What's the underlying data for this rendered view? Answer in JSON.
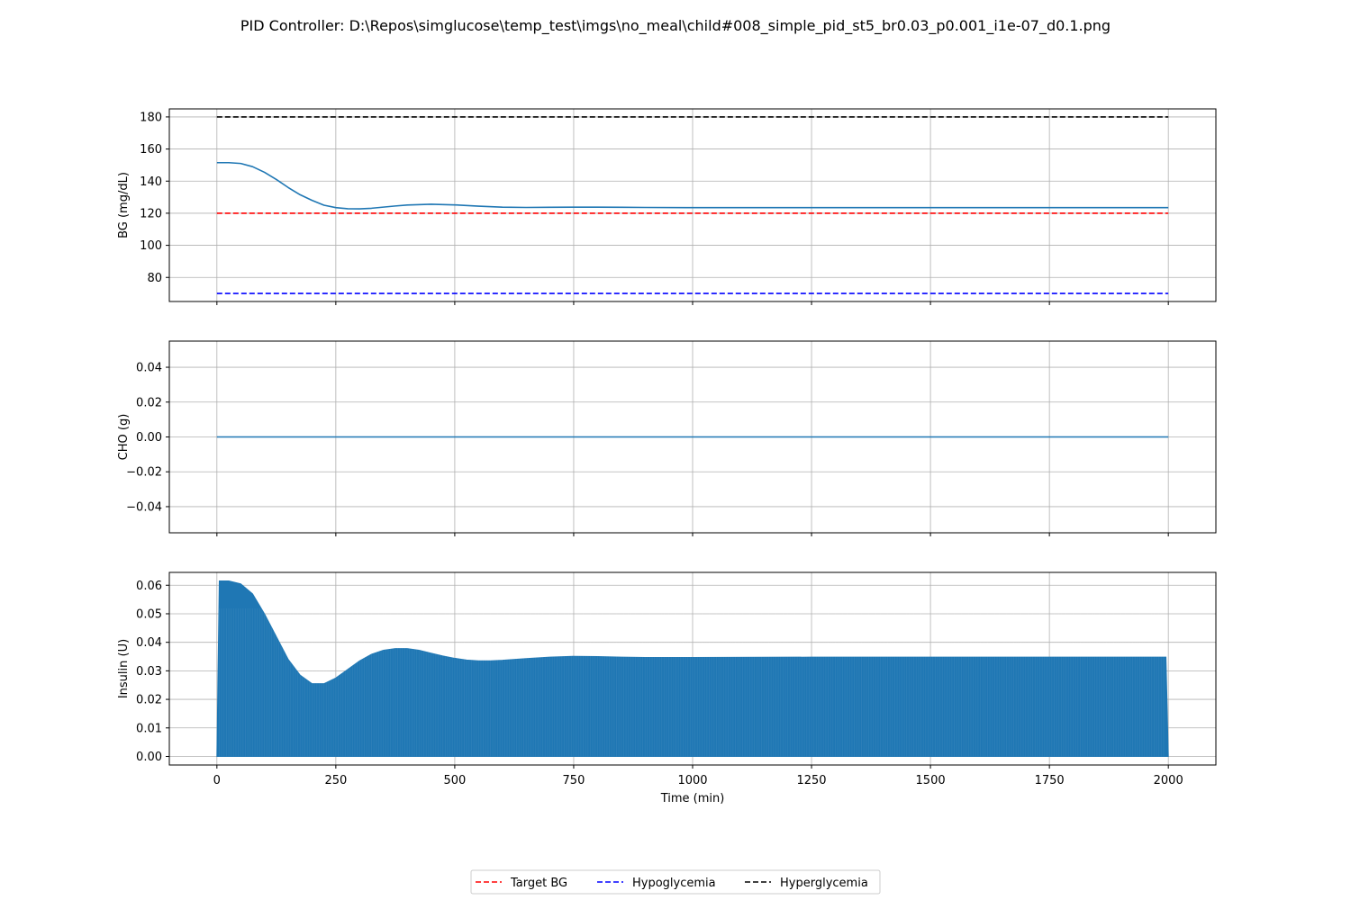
{
  "figure": {
    "title": "PID Controller: D:\\Repos\\simglucose\\temp_test\\imgs\\no_meal\\child#008_simple_pid_st5_br0.03_p0.001_i1e-07_d0.1.png"
  },
  "colors": {
    "series": "#1f77b4",
    "target": "#ff0000",
    "hypo": "#0000ff",
    "hyper": "#000000",
    "grid": "#b0b0b0",
    "axes": "#000000"
  },
  "chart_data": [
    {
      "type": "line",
      "xlabel": "",
      "ylabel": "BG (mg/dL)",
      "xlim": [
        -100,
        2100
      ],
      "ylim": [
        65,
        185
      ],
      "xticks": [
        0,
        250,
        500,
        750,
        1000,
        1250,
        1500,
        1750,
        2000
      ],
      "yticks": [
        80,
        100,
        120,
        140,
        160,
        180
      ],
      "grid": true,
      "series": [
        {
          "name": "",
          "x": [
            0,
            25,
            50,
            75,
            100,
            125,
            150,
            175,
            200,
            225,
            250,
            275,
            300,
            325,
            350,
            375,
            400,
            450,
            500,
            550,
            600,
            650,
            700,
            750,
            800,
            850,
            900,
            1000,
            1250,
            1500,
            1750,
            2000
          ],
          "y": [
            151.5,
            151.5,
            151.0,
            149.0,
            145.5,
            141.0,
            136.0,
            131.5,
            128.0,
            125.0,
            123.5,
            122.8,
            122.7,
            123.1,
            123.8,
            124.5,
            125.1,
            125.6,
            125.2,
            124.4,
            123.8,
            123.6,
            123.7,
            123.8,
            123.8,
            123.7,
            123.6,
            123.5,
            123.5,
            123.5,
            123.5,
            123.5
          ]
        },
        {
          "name": "Target BG",
          "style": "dashed",
          "x": [
            0,
            2000
          ],
          "y": [
            120,
            120
          ]
        },
        {
          "name": "Hypoglycemia",
          "style": "dashed",
          "x": [
            0,
            2000
          ],
          "y": [
            70,
            70
          ]
        },
        {
          "name": "Hyperglycemia",
          "style": "dashed",
          "x": [
            0,
            2000
          ],
          "y": [
            180,
            180
          ]
        }
      ]
    },
    {
      "type": "line",
      "xlabel": "",
      "ylabel": "CHO (g)",
      "xlim": [
        -100,
        2100
      ],
      "ylim": [
        -0.055,
        0.055
      ],
      "xticks": [
        0,
        250,
        500,
        750,
        1000,
        1250,
        1500,
        1750,
        2000
      ],
      "yticks": [
        -0.04,
        -0.02,
        0.0,
        0.02,
        0.04
      ],
      "ytick_labels": [
        "−0.04",
        "−0.02",
        "0.00",
        "0.02",
        "0.04"
      ],
      "grid": true,
      "series": [
        {
          "name": "",
          "x": [
            0,
            2000
          ],
          "y": [
            0,
            0
          ]
        }
      ]
    },
    {
      "type": "area",
      "xlabel": "Time (min)",
      "ylabel": "Insulin (U)",
      "xlim": [
        -100,
        2100
      ],
      "ylim": [
        -0.003,
        0.0645
      ],
      "xticks": [
        0,
        250,
        500,
        750,
        1000,
        1250,
        1500,
        1750,
        2000
      ],
      "xtick_labels": [
        "0",
        "250",
        "500",
        "750",
        "1000",
        "1250",
        "1500",
        "1750",
        "2000"
      ],
      "yticks": [
        0.0,
        0.01,
        0.02,
        0.03,
        0.04,
        0.05,
        0.06
      ],
      "ytick_labels": [
        "0.00",
        "0.01",
        "0.02",
        "0.03",
        "0.04",
        "0.05",
        "0.06"
      ],
      "grid": true,
      "series": [
        {
          "name": "",
          "x": [
            0,
            5,
            25,
            50,
            75,
            100,
            125,
            150,
            175,
            200,
            225,
            250,
            275,
            300,
            325,
            350,
            375,
            400,
            425,
            450,
            475,
            500,
            525,
            550,
            575,
            600,
            650,
            700,
            750,
            800,
            850,
            900,
            950,
            1000,
            1250,
            1500,
            1750,
            1995,
            2000
          ],
          "y": [
            0.0,
            0.0615,
            0.0615,
            0.0605,
            0.057,
            0.05,
            0.042,
            0.034,
            0.0285,
            0.0255,
            0.0255,
            0.0275,
            0.0305,
            0.0335,
            0.0358,
            0.0372,
            0.0378,
            0.0378,
            0.0372,
            0.0362,
            0.0352,
            0.0344,
            0.0338,
            0.0335,
            0.0335,
            0.0337,
            0.0343,
            0.0348,
            0.0351,
            0.035,
            0.0348,
            0.0347,
            0.0347,
            0.0347,
            0.0348,
            0.0348,
            0.0348,
            0.0348,
            0.0
          ]
        }
      ]
    }
  ],
  "legend": {
    "placement": "lower center",
    "entries": [
      "Target BG",
      "Hypoglycemia",
      "Hyperglycemia"
    ]
  }
}
